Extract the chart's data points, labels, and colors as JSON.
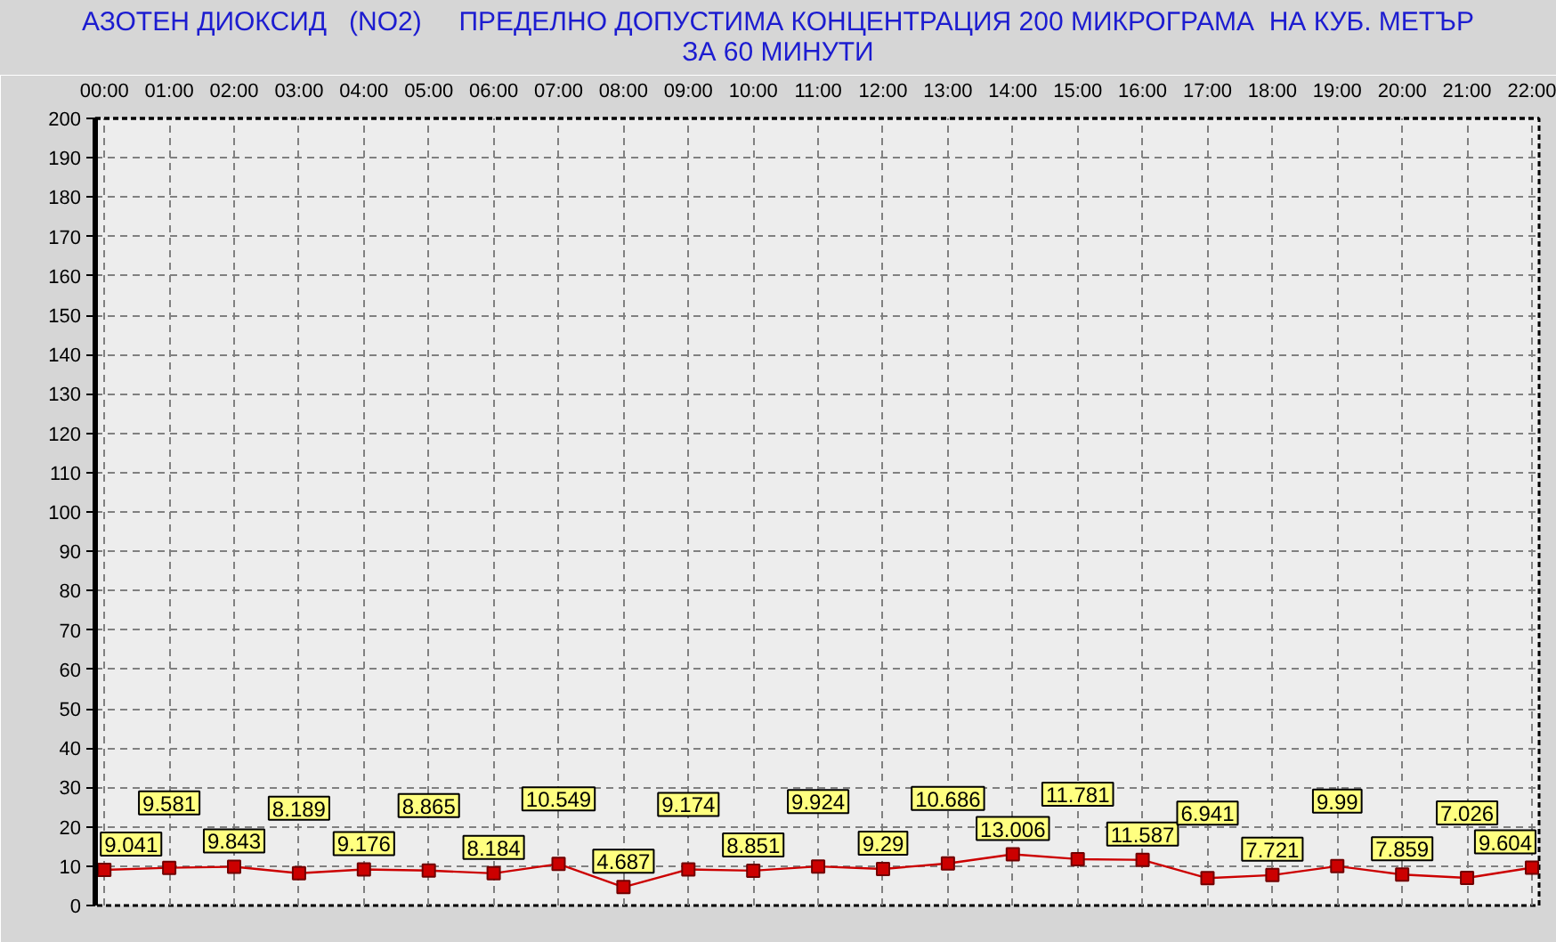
{
  "chart_data": {
    "type": "line",
    "title": "АЗОТЕН ДИОКСИД   (NO2)     ПРЕДЕЛНО ДОПУСТИМА КОНЦЕНТРАЦИЯ 200 МИКРОГРАМА  НА КУБ. МЕТЪР\nЗА 60 МИНУТИ",
    "x": [
      0,
      1,
      2,
      3,
      4,
      5,
      6,
      7,
      8,
      9,
      10,
      11,
      12,
      13,
      14,
      15,
      16,
      17,
      18,
      19,
      20,
      21,
      22
    ],
    "series": [
      {
        "color": "#cc0000",
        "values": [
          9.041,
          9.581,
          9.843,
          8.189,
          9.176,
          8.865,
          8.184,
          10.549,
          4.687,
          9.174,
          8.851,
          9.924,
          9.29,
          10.686,
          13.006,
          11.781,
          11.587,
          6.941,
          7.721,
          9.99,
          7.859,
          7.026,
          9.604
        ]
      }
    ],
    "xlim": [
      -0.14,
      22.11
    ],
    "ylim": [
      0,
      200
    ],
    "xticks": [
      {
        "value": 0,
        "label": "00:00"
      },
      {
        "value": 1,
        "label": "01:00"
      },
      {
        "value": 2,
        "label": "02:00"
      },
      {
        "value": 3,
        "label": "03:00"
      },
      {
        "value": 4,
        "label": "04:00"
      },
      {
        "value": 5,
        "label": "05:00"
      },
      {
        "value": 6,
        "label": "06:00"
      },
      {
        "value": 7,
        "label": "07:00"
      },
      {
        "value": 8,
        "label": "08:00"
      },
      {
        "value": 9,
        "label": "09:00"
      },
      {
        "value": 10,
        "label": "10:00"
      },
      {
        "value": 11,
        "label": "11:00"
      },
      {
        "value": 12,
        "label": "12:00"
      },
      {
        "value": 13,
        "label": "13:00"
      },
      {
        "value": 14,
        "label": "14:00"
      },
      {
        "value": 15,
        "label": "15:00"
      },
      {
        "value": 16,
        "label": "16:00"
      },
      {
        "value": 17,
        "label": "17:00"
      },
      {
        "value": 18,
        "label": "18:00"
      },
      {
        "value": 19,
        "label": "19:00"
      },
      {
        "value": 20,
        "label": "20:00"
      },
      {
        "value": 21,
        "label": "21:00"
      },
      {
        "value": 22,
        "label": "22:00"
      }
    ],
    "yticks": [
      0,
      10,
      20,
      30,
      40,
      50,
      60,
      70,
      80,
      90,
      100,
      110,
      120,
      130,
      140,
      150,
      160,
      170,
      180,
      190,
      200
    ],
    "grid": true,
    "marker": "square",
    "line_style": "solid",
    "data_labels": true
  }
}
